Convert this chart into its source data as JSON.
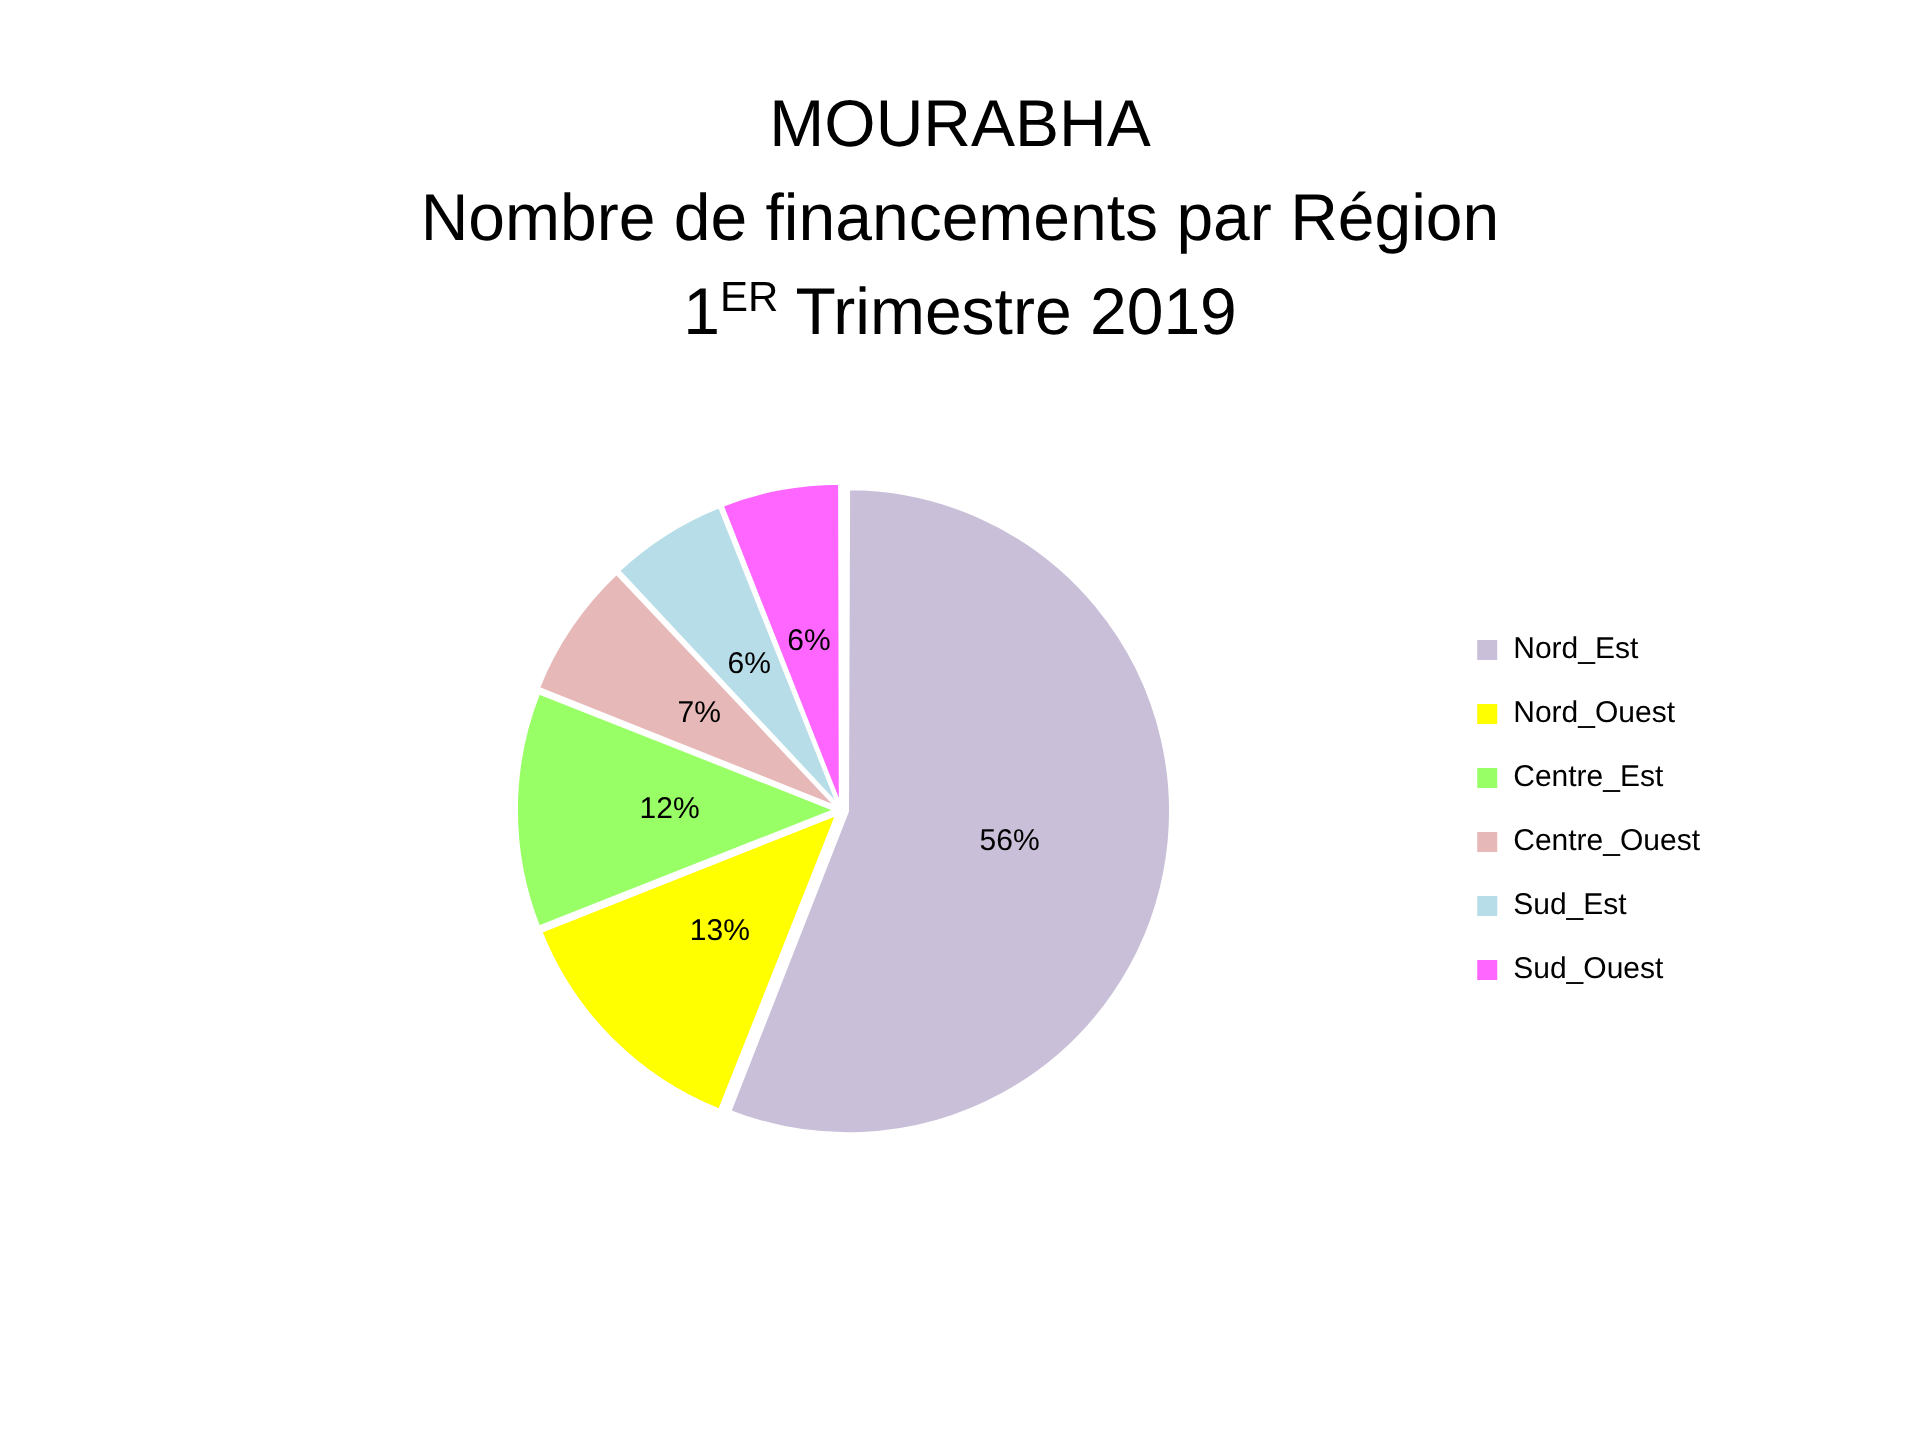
{
  "chart_data": {
    "type": "pie",
    "title": "MOURABHA\nNombre de financements par Région\n1$^{ER}$ Trimestre 2019",
    "categories": [
      "Nord_Est",
      "Nord_Ouest",
      "Centre_Est",
      "Centre_Ouest",
      "Sud_Est",
      "Sud_Ouest"
    ],
    "values": [
      56,
      13,
      12,
      7,
      6,
      6
    ],
    "colors": [
      "#c9bfd8",
      "#ffff00",
      "#99ff66",
      "#e6b9b8",
      "#b7dee8",
      "#ff66ff"
    ],
    "value_labels": [
      "56%",
      "13%",
      "12%",
      "7%",
      "6%",
      "6%"
    ],
    "legend": "right"
  }
}
